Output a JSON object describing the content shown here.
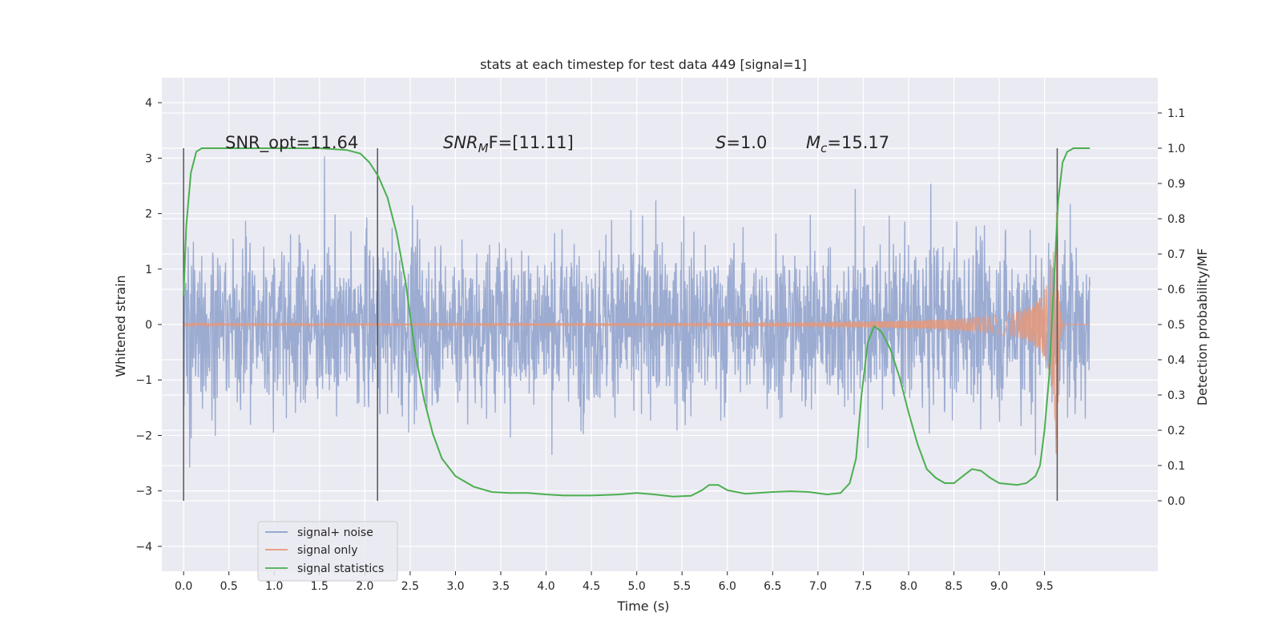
{
  "chart_data": {
    "type": "line",
    "title": "stats at each timestep for test data 449 [signal=1]",
    "xlabel": "Time (s)",
    "ylabel_left": "Whitened strain",
    "ylabel_right": "Detection probability/MF",
    "xlim": [
      -0.24,
      10.75
    ],
    "ylim_left": [
      -4.45,
      4.45
    ],
    "ylim_right": [
      -0.2,
      1.2
    ],
    "xticks": [
      "0.0",
      "0.5",
      "1.0",
      "1.5",
      "2.0",
      "2.5",
      "3.0",
      "3.5",
      "4.0",
      "4.5",
      "5.0",
      "5.5",
      "6.0",
      "6.5",
      "7.0",
      "7.5",
      "8.0",
      "8.5",
      "9.0",
      "9.5"
    ],
    "yticks_left": [
      "−4",
      "−3",
      "−2",
      "−1",
      "0",
      "1",
      "2",
      "3",
      "4"
    ],
    "yticks_right": [
      "0.0",
      "0.1",
      "0.2",
      "0.3",
      "0.4",
      "0.5",
      "0.6",
      "0.7",
      "0.8",
      "0.9",
      "1.0",
      "1.1"
    ],
    "grid": true,
    "legend_placement": "lower-left",
    "annotations": {
      "snr_opt": "SNR_opt=11.64",
      "snr_mf_base": "SNR",
      "snr_mf_sub": "M",
      "snr_mf_rest": "F=[11.11]",
      "s_label": "S",
      "s_value": "=1.0",
      "mc_base": "M",
      "mc_sub": "c",
      "mc_value": "=15.17"
    },
    "markers_x": [
      0.0,
      2.14,
      9.64
    ],
    "series": [
      {
        "name": "signal+ noise",
        "color": "#8da0cb",
        "noise_band": [
          -3.2,
          4.0
        ],
        "x_range": [
          0.0,
          10.0
        ]
      },
      {
        "name": "signal only",
        "color": "#e5987a",
        "chirp_peak_x": 9.64,
        "chirp_peak_y": 2.6
      },
      {
        "name": "signal statistics",
        "color": "#4caf50",
        "x": [
          0.0,
          0.03,
          0.08,
          0.14,
          0.2,
          0.3,
          0.5,
          1.0,
          1.5,
          1.8,
          1.95,
          2.05,
          2.15,
          2.25,
          2.35,
          2.45,
          2.55,
          2.65,
          2.75,
          2.85,
          3.0,
          3.2,
          3.4,
          3.6,
          3.8,
          4.0,
          4.2,
          4.5,
          4.8,
          5.0,
          5.2,
          5.4,
          5.6,
          5.72,
          5.8,
          5.9,
          6.0,
          6.2,
          6.5,
          6.7,
          6.9,
          7.1,
          7.25,
          7.35,
          7.42,
          7.48,
          7.55,
          7.62,
          7.7,
          7.8,
          7.9,
          8.0,
          8.1,
          8.2,
          8.3,
          8.4,
          8.5,
          8.6,
          8.7,
          8.8,
          8.9,
          9.0,
          9.2,
          9.3,
          9.4,
          9.45,
          9.5,
          9.55,
          9.6,
          9.65,
          9.7,
          9.75,
          9.82,
          9.9,
          10.0
        ],
        "y": [
          0.58,
          0.78,
          0.93,
          0.99,
          1.0,
          1.0,
          1.0,
          1.0,
          1.0,
          0.995,
          0.985,
          0.96,
          0.92,
          0.86,
          0.76,
          0.62,
          0.43,
          0.29,
          0.19,
          0.12,
          0.07,
          0.04,
          0.025,
          0.022,
          0.022,
          0.018,
          0.015,
          0.015,
          0.018,
          0.022,
          0.018,
          0.012,
          0.014,
          0.03,
          0.045,
          0.045,
          0.03,
          0.02,
          0.025,
          0.027,
          0.025,
          0.018,
          0.022,
          0.05,
          0.12,
          0.3,
          0.45,
          0.495,
          0.48,
          0.43,
          0.35,
          0.25,
          0.16,
          0.09,
          0.065,
          0.05,
          0.05,
          0.07,
          0.09,
          0.085,
          0.065,
          0.05,
          0.045,
          0.05,
          0.07,
          0.1,
          0.2,
          0.35,
          0.6,
          0.85,
          0.96,
          0.99,
          1.0,
          1.0,
          1.0
        ]
      }
    ]
  }
}
